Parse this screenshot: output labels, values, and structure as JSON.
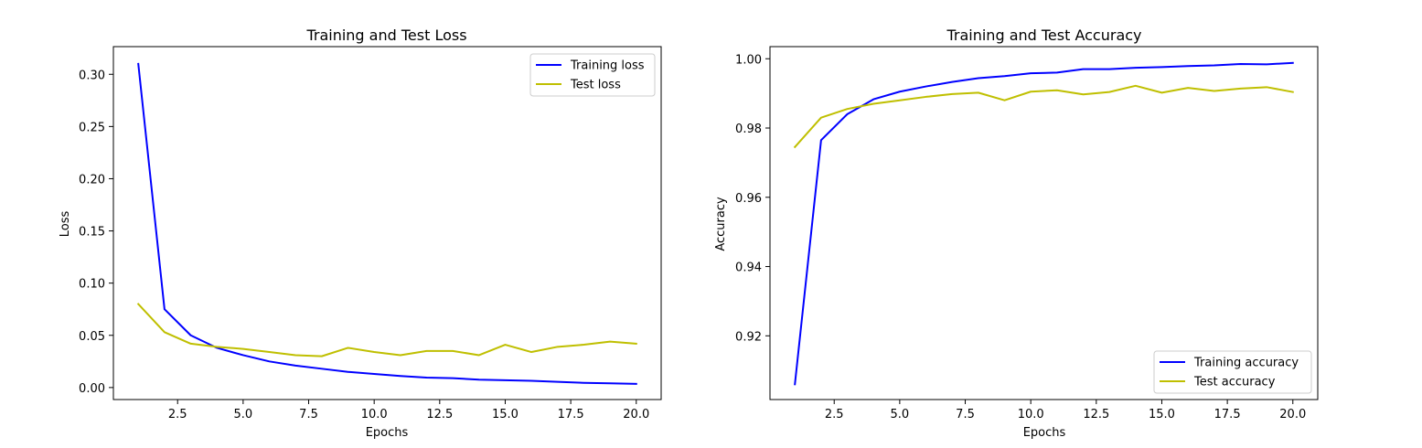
{
  "chart_data": [
    {
      "type": "line",
      "title": "Training and Test Loss",
      "xlabel": "Epochs",
      "ylabel": "Loss",
      "xlim": [
        0.05,
        20.95
      ],
      "ylim": [
        -0.0115,
        0.3265
      ],
      "xticks": [
        2.5,
        5.0,
        7.5,
        10.0,
        12.5,
        15.0,
        17.5,
        20.0
      ],
      "xtick_labels": [
        "2.5",
        "5.0",
        "7.5",
        "10.0",
        "12.5",
        "15.0",
        "17.5",
        "20.0"
      ],
      "yticks": [
        0.0,
        0.05,
        0.1,
        0.15,
        0.2,
        0.25,
        0.3
      ],
      "ytick_labels": [
        "0.00",
        "0.05",
        "0.10",
        "0.15",
        "0.20",
        "0.25",
        "0.30"
      ],
      "legend_position": "top-right",
      "grid": false,
      "x": [
        1,
        2,
        3,
        4,
        5,
        6,
        7,
        8,
        9,
        10,
        11,
        12,
        13,
        14,
        15,
        16,
        17,
        18,
        19,
        20
      ],
      "series": [
        {
          "name": "Training loss",
          "color": "#0000ff",
          "values": [
            0.31,
            0.075,
            0.05,
            0.038,
            0.031,
            0.025,
            0.021,
            0.018,
            0.015,
            0.013,
            0.011,
            0.0095,
            0.009,
            0.0075,
            0.007,
            0.0065,
            0.0055,
            0.0045,
            0.004,
            0.0035
          ]
        },
        {
          "name": "Test loss",
          "color": "#bfbf00",
          "values": [
            0.08,
            0.053,
            0.042,
            0.039,
            0.037,
            0.034,
            0.031,
            0.03,
            0.038,
            0.034,
            0.031,
            0.035,
            0.035,
            0.031,
            0.041,
            0.034,
            0.039,
            0.041,
            0.044,
            0.042
          ]
        }
      ]
    },
    {
      "type": "line",
      "title": "Training and Test Accuracy",
      "xlabel": "Epochs",
      "ylabel": "Accuracy",
      "xlim": [
        0.05,
        20.95
      ],
      "ylim": [
        0.9016,
        1.0035
      ],
      "xticks": [
        2.5,
        5.0,
        7.5,
        10.0,
        12.5,
        15.0,
        17.5,
        20.0
      ],
      "xtick_labels": [
        "2.5",
        "5.0",
        "7.5",
        "10.0",
        "12.5",
        "15.0",
        "17.5",
        "20.0"
      ],
      "yticks": [
        0.92,
        0.94,
        0.96,
        0.98,
        1.0
      ],
      "ytick_labels": [
        "0.92",
        "0.94",
        "0.96",
        "0.98",
        "1.00"
      ],
      "legend_position": "bottom-right",
      "grid": false,
      "x": [
        1,
        2,
        3,
        4,
        5,
        6,
        7,
        8,
        9,
        10,
        11,
        12,
        13,
        14,
        15,
        16,
        17,
        18,
        19,
        20
      ],
      "series": [
        {
          "name": "Training accuracy",
          "color": "#0000ff",
          "values": [
            0.906,
            0.9765,
            0.984,
            0.9883,
            0.9905,
            0.992,
            0.9933,
            0.9944,
            0.995,
            0.9958,
            0.996,
            0.997,
            0.997,
            0.9974,
            0.9976,
            0.9979,
            0.9981,
            0.9985,
            0.9984,
            0.9988
          ]
        },
        {
          "name": "Test accuracy",
          "color": "#bfbf00",
          "values": [
            0.9745,
            0.983,
            0.9855,
            0.987,
            0.988,
            0.989,
            0.9898,
            0.9902,
            0.988,
            0.9905,
            0.9909,
            0.9897,
            0.9904,
            0.9922,
            0.9902,
            0.9916,
            0.9907,
            0.9914,
            0.9918,
            0.9904
          ]
        }
      ]
    }
  ]
}
